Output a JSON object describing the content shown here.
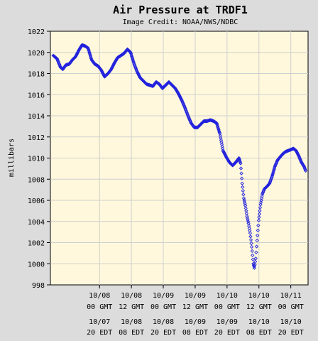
{
  "chart_data": {
    "type": "scatter",
    "title": "Air Pressure at TRDF1",
    "subtitle": "Image Credit: NOAA/NWS/NDBC",
    "xlabel": "",
    "ylabel": "millibars",
    "ylim": [
      998,
      1022
    ],
    "y_ticks": [
      998,
      1000,
      1002,
      1004,
      1006,
      1008,
      1010,
      1012,
      1014,
      1016,
      1018,
      1020,
      1022
    ],
    "xlim": [
      -18.5,
      78.5
    ],
    "x_unit": "hours since 10/08 00 GMT",
    "x_ticks": [
      {
        "x": 0,
        "gmt_date": "10/08",
        "gmt_time": "00 GMT",
        "edt_date": "10/07",
        "edt_time": "20 EDT"
      },
      {
        "x": 12,
        "gmt_date": "10/08",
        "gmt_time": "12 GMT",
        "edt_date": "10/08",
        "edt_time": "08 EDT"
      },
      {
        "x": 24,
        "gmt_date": "10/09",
        "gmt_time": "00 GMT",
        "edt_date": "10/08",
        "edt_time": "20 EDT"
      },
      {
        "x": 36,
        "gmt_date": "10/09",
        "gmt_time": "12 GMT",
        "edt_date": "10/09",
        "edt_time": "08 EDT"
      },
      {
        "x": 48,
        "gmt_date": "10/10",
        "gmt_time": "00 GMT",
        "edt_date": "10/09",
        "edt_time": "20 EDT"
      },
      {
        "x": 60,
        "gmt_date": "10/10",
        "gmt_time": "12 GMT",
        "edt_date": "10/10",
        "edt_time": "08 EDT"
      },
      {
        "x": 72,
        "gmt_date": "10/11",
        "gmt_time": "00 GMT",
        "edt_date": "10/10",
        "edt_time": "20 EDT"
      }
    ],
    "grid": true,
    "legend": "none",
    "marker_color": "#2222dd",
    "plot_background": "#fff8dc",
    "series": [
      {
        "points": [
          [
            -17.4,
            1019.7
          ],
          [
            -16,
            1019.4
          ],
          [
            -14.7,
            1018.6
          ],
          [
            -13.8,
            1018.4
          ],
          [
            -12.7,
            1018.8
          ],
          [
            -11.4,
            1018.9
          ],
          [
            -10.2,
            1019.3
          ],
          [
            -9,
            1019.6
          ],
          [
            -7.8,
            1020.2
          ],
          [
            -6.6,
            1020.7
          ],
          [
            -5.4,
            1020.6
          ],
          [
            -4.3,
            1020.4
          ],
          [
            -3,
            1019.3
          ],
          [
            -1.8,
            1018.9
          ],
          [
            -0.5,
            1018.7
          ],
          [
            0.7,
            1018.3
          ],
          [
            1.9,
            1017.7
          ],
          [
            3.2,
            1018.0
          ],
          [
            4.4,
            1018.4
          ],
          [
            5.6,
            1019.0
          ],
          [
            6.8,
            1019.5
          ],
          [
            8,
            1019.7
          ],
          [
            9.2,
            1019.9
          ],
          [
            10.5,
            1020.3
          ],
          [
            11.7,
            1020.0
          ],
          [
            12.9,
            1019.0
          ],
          [
            14.1,
            1018.2
          ],
          [
            15.3,
            1017.6
          ],
          [
            16.5,
            1017.3
          ],
          [
            17.7,
            1017.0
          ],
          [
            18.9,
            1016.9
          ],
          [
            20.1,
            1016.8
          ],
          [
            21.3,
            1017.2
          ],
          [
            22.5,
            1017.0
          ],
          [
            23.7,
            1016.6
          ],
          [
            24.9,
            1016.9
          ],
          [
            26.1,
            1017.2
          ],
          [
            27.3,
            1016.9
          ],
          [
            28.5,
            1016.6
          ],
          [
            29.7,
            1016.1
          ],
          [
            30.9,
            1015.5
          ],
          [
            32.1,
            1014.8
          ],
          [
            33.3,
            1014.0
          ],
          [
            34.5,
            1013.3
          ],
          [
            35.7,
            1012.9
          ],
          [
            36.9,
            1012.9
          ],
          [
            38.1,
            1013.2
          ],
          [
            39.3,
            1013.5
          ],
          [
            40.5,
            1013.5
          ],
          [
            41.7,
            1013.6
          ],
          [
            42.9,
            1013.5
          ],
          [
            44.1,
            1013.3
          ],
          [
            45.3,
            1012.3
          ],
          [
            46.5,
            1010.7
          ],
          [
            47.7,
            1010.1
          ],
          [
            48.9,
            1009.6
          ],
          [
            50.1,
            1009.3
          ],
          [
            51.3,
            1009.6
          ],
          [
            52.5,
            1010.0
          ],
          [
            53.1,
            1009.5
          ],
          [
            53.7,
            1007.6
          ],
          [
            54.3,
            1006.2
          ],
          [
            54.9,
            1005.5
          ],
          [
            55.5,
            1004.5
          ],
          [
            56.1,
            1003.8
          ],
          [
            56.7,
            1002.9
          ],
          [
            57.3,
            1001.6
          ],
          [
            57.9,
            1000.0
          ],
          [
            58.3,
            999.6
          ],
          [
            58.8,
            1000.5
          ],
          [
            59.3,
            1002.2
          ],
          [
            59.9,
            1004.1
          ],
          [
            60.6,
            1005.6
          ],
          [
            61.3,
            1006.6
          ],
          [
            62.1,
            1007.1
          ],
          [
            63,
            1007.3
          ],
          [
            64,
            1007.6
          ],
          [
            65,
            1008.3
          ],
          [
            66,
            1009.2
          ],
          [
            67,
            1009.8
          ],
          [
            68,
            1010.1
          ],
          [
            69,
            1010.4
          ],
          [
            70,
            1010.6
          ],
          [
            71,
            1010.7
          ],
          [
            72,
            1010.8
          ],
          [
            73,
            1010.9
          ],
          [
            74,
            1010.7
          ],
          [
            75,
            1010.2
          ],
          [
            76,
            1009.6
          ],
          [
            77,
            1009.2
          ],
          [
            77.6,
            1008.8
          ]
        ]
      }
    ]
  }
}
